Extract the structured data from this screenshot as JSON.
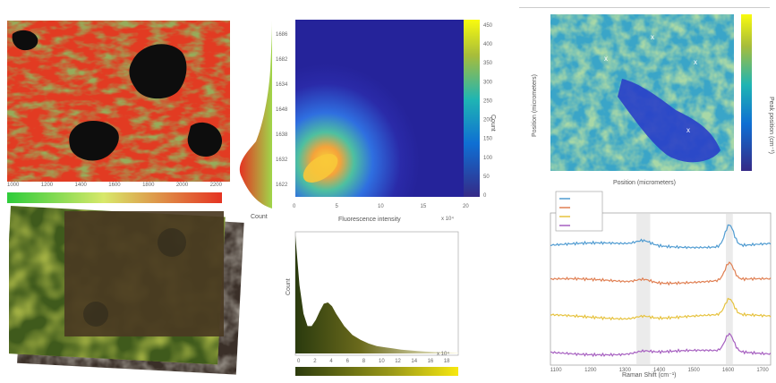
{
  "panel_ratio_map": {
    "colorbar_ticks": [
      "1000",
      "1200",
      "1400",
      "1600",
      "1800",
      "2000",
      "2200"
    ]
  },
  "panel_joint": {
    "side_axis_ticks": [
      "1686",
      "1682",
      "1634",
      "1648",
      "1638",
      "1632",
      "1622"
    ],
    "side_axis_label": "Count",
    "xlabel": "Fluorescence intensity",
    "x_scale_note": "x 10⁴",
    "ylabel_colorbar": "Count",
    "colorbar_ticks": [
      "450",
      "400",
      "350",
      "300",
      "250",
      "200",
      "150",
      "100",
      "50",
      "0"
    ]
  },
  "panel_histogram": {
    "ylabel": "Count",
    "x_scale_note": "x 10⁴"
  },
  "panel_raman_map": {
    "xlabel": "Position (micrometers)",
    "ylabel": "Position (micrometers)",
    "colorbar_label": "Peak position (cm⁻¹)"
  },
  "panel_spectra": {
    "xlabel": "Raman Shift (cm⁻¹)"
  },
  "chart_data": [
    {
      "type": "heatmap",
      "title": "",
      "note": "peak-ratio map, red/green with black voids; colorbar green to red",
      "colorbar_ticks": [
        1000,
        1200,
        1400,
        1600,
        1800,
        2000,
        2200
      ],
      "colors": {
        "low": "#2ecc3a",
        "high": "#e53322",
        "void": "#111111"
      }
    },
    {
      "type": "heatmap",
      "title": "",
      "note": "2D density histogram of fluorescence intensity vs peak position",
      "xlabel": "Fluorescence intensity",
      "x_ticks": [
        0,
        5,
        10,
        15,
        20
      ],
      "x_scale": "x 10^4",
      "xlim": [
        0,
        20
      ],
      "colorbar_label": "Count",
      "colorbar_ticks": [
        0,
        50,
        100,
        150,
        200,
        250,
        300,
        350,
        400,
        450
      ],
      "colormap": "parula"
    },
    {
      "type": "area",
      "title": "",
      "ylabel": "Count",
      "x_ticks": [
        0,
        2,
        4,
        6,
        8,
        10,
        12,
        14,
        16,
        18
      ],
      "x_scale": "x 10^4",
      "x": [
        0,
        0.5,
        1,
        1.5,
        2,
        2.5,
        3,
        3.5,
        4,
        4.5,
        5,
        6,
        7,
        8,
        9,
        10,
        11,
        12,
        13,
        14,
        15,
        16,
        17,
        18,
        19,
        20
      ],
      "values": [
        0.95,
        0.55,
        0.32,
        0.22,
        0.22,
        0.27,
        0.34,
        0.4,
        0.41,
        0.38,
        0.32,
        0.22,
        0.15,
        0.11,
        0.08,
        0.06,
        0.05,
        0.04,
        0.03,
        0.025,
        0.02,
        0.015,
        0.012,
        0.01,
        0.008,
        0.006
      ]
    },
    {
      "type": "heatmap",
      "title": "",
      "xlabel": "Position (micrometers)",
      "ylabel": "Position (micrometers)",
      "colorbar_label": "Peak position (cm⁻¹)",
      "markers": 4,
      "colormap": "parula"
    },
    {
      "type": "line",
      "title": "",
      "xlabel": "Raman Shift (cm⁻¹)",
      "x_ticks": [
        1100,
        1200,
        1300,
        1400,
        1500,
        1600,
        1700
      ],
      "xlim": [
        1080,
        1720
      ],
      "legend": "top-left",
      "series": [
        {
          "name": "",
          "color": "#4f9bd1",
          "offset": 3,
          "base": 0.0,
          "peak_a": 0.15,
          "peak_b": 0.75
        },
        {
          "name": "",
          "color": "#e07f52",
          "offset": 2,
          "base": 0.0,
          "peak_a": 0.12,
          "peak_b": 0.6
        },
        {
          "name": "",
          "color": "#e6c23d",
          "offset": 1,
          "base": 0.0,
          "peak_a": 0.1,
          "peak_b": 0.55
        },
        {
          "name": "",
          "color": "#a65fc0",
          "offset": 0,
          "base": 0.0,
          "peak_a": 0.08,
          "peak_b": 0.6
        }
      ],
      "shaded_bands": [
        [
          1330,
          1370
        ],
        [
          1590,
          1610
        ]
      ]
    }
  ]
}
